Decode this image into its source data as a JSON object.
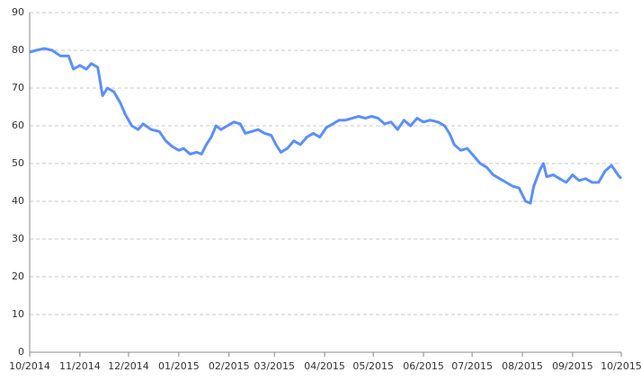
{
  "chart_data": {
    "type": "line",
    "x": [
      "2014-10-01",
      "2014-10-05",
      "2014-10-10",
      "2014-10-15",
      "2014-10-20",
      "2014-10-25",
      "2014-10-28",
      "2014-11-01",
      "2014-11-05",
      "2014-11-08",
      "2014-11-12",
      "2014-11-15",
      "2014-11-18",
      "2014-11-22",
      "2014-11-26",
      "2014-11-29",
      "2014-12-03",
      "2014-12-07",
      "2014-12-10",
      "2014-12-15",
      "2014-12-20",
      "2014-12-24",
      "2014-12-28",
      "2015-01-01",
      "2015-01-04",
      "2015-01-08",
      "2015-01-12",
      "2015-01-15",
      "2015-01-18",
      "2015-01-21",
      "2015-01-24",
      "2015-01-27",
      "2015-01-31",
      "2015-02-04",
      "2015-02-08",
      "2015-02-11",
      "2015-02-15",
      "2015-02-19",
      "2015-02-23",
      "2015-02-27",
      "2015-03-02",
      "2015-03-05",
      "2015-03-09",
      "2015-03-13",
      "2015-03-17",
      "2015-03-21",
      "2015-03-25",
      "2015-03-29",
      "2015-04-02",
      "2015-04-06",
      "2015-04-10",
      "2015-04-14",
      "2015-04-18",
      "2015-04-22",
      "2015-04-26",
      "2015-04-30",
      "2015-05-04",
      "2015-05-08",
      "2015-05-12",
      "2015-05-16",
      "2015-05-20",
      "2015-05-24",
      "2015-05-28",
      "2015-06-01",
      "2015-06-05",
      "2015-06-10",
      "2015-06-14",
      "2015-06-17",
      "2015-06-20",
      "2015-06-24",
      "2015-06-28",
      "2015-07-02",
      "2015-07-06",
      "2015-07-10",
      "2015-07-14",
      "2015-07-18",
      "2015-07-22",
      "2015-07-26",
      "2015-07-30",
      "2015-08-03",
      "2015-08-06",
      "2015-08-08",
      "2015-08-12",
      "2015-08-14",
      "2015-08-16",
      "2015-08-20",
      "2015-08-24",
      "2015-08-28",
      "2015-09-01",
      "2015-09-05",
      "2015-09-09",
      "2015-09-13",
      "2015-09-17",
      "2015-09-21",
      "2015-09-25",
      "2015-09-29",
      "2015-10-01"
    ],
    "series": [
      {
        "color": "#5b8ff9",
        "values": [
          79.5,
          80,
          80.5,
          80,
          78.5,
          78.5,
          75,
          76,
          75,
          76.5,
          75.5,
          68,
          70,
          69,
          66,
          63,
          60,
          59,
          60.5,
          59,
          58.5,
          56,
          54.5,
          53.5,
          54,
          52.5,
          53,
          52.5,
          55,
          57,
          60,
          59,
          60,
          61,
          60.5,
          58,
          58.5,
          59,
          58,
          57.5,
          55,
          53,
          54,
          56,
          55,
          57,
          58,
          57,
          59.5,
          60.5,
          61.5,
          61.5,
          62,
          62.5,
          62,
          62.5,
          62,
          60.5,
          61,
          59,
          61.5,
          60,
          62,
          61,
          61.5,
          61,
          60,
          58,
          55,
          53.5,
          54,
          52,
          50,
          49,
          47,
          46,
          45,
          44,
          43.5,
          40,
          39.5,
          44,
          48.5,
          50,
          46.5,
          47,
          46,
          45,
          47,
          45.5,
          46,
          45,
          45,
          48,
          49.5,
          47,
          46
        ]
      }
    ],
    "xlim": [
      "2014-10-01",
      "2015-10-01"
    ],
    "xticks": [
      {
        "value": "2014-10-01",
        "label": "10/2014"
      },
      {
        "value": "2014-11-01",
        "label": "11/2014"
      },
      {
        "value": "2014-12-01",
        "label": "12/2014"
      },
      {
        "value": "2015-01-01",
        "label": "01/2015"
      },
      {
        "value": "2015-02-01",
        "label": "02/2015"
      },
      {
        "value": "2015-03-01",
        "label": "03/2015"
      },
      {
        "value": "2015-04-01",
        "label": "04/2015"
      },
      {
        "value": "2015-05-01",
        "label": "05/2015"
      },
      {
        "value": "2015-06-01",
        "label": "06/2015"
      },
      {
        "value": "2015-07-01",
        "label": "07/2015"
      },
      {
        "value": "2015-08-01",
        "label": "08/2015"
      },
      {
        "value": "2015-09-01",
        "label": "09/2015"
      },
      {
        "value": "2015-10-01",
        "label": "10/2015"
      }
    ],
    "ylim": [
      0,
      90
    ],
    "yticks": [
      0,
      10,
      20,
      30,
      40,
      50,
      60,
      70,
      80,
      90
    ],
    "grid": true
  }
}
